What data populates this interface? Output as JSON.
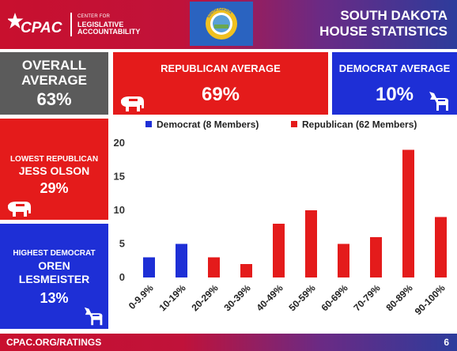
{
  "header": {
    "logo_text": "CPAC",
    "org_line1": "CENTER FOR",
    "org_line2": "LEGISLATIVE",
    "org_line3": "ACCOUNTABILITY",
    "title_line1": "SOUTH DAKOTA",
    "title_line2": "HOUSE STATISTICS",
    "flag_text": "SOUTH DAKOTA"
  },
  "stats": {
    "overall_label_line1": "OVERALL",
    "overall_label_line2": "AVERAGE",
    "overall_value": "63%",
    "republican_label": "REPUBLICAN AVERAGE",
    "republican_value": "69%",
    "democrat_label": "DEMOCRAT AVERAGE",
    "democrat_value": "10%",
    "lowest_label": "LOWEST REPUBLICAN",
    "lowest_name": "JESS OLSON",
    "lowest_value": "29%",
    "highest_label": "HIGHEST DEMOCRAT",
    "highest_name_line1": "OREN",
    "highest_name_line2": "LESMEISTER",
    "highest_value": "13%"
  },
  "colors": {
    "democrat": "#1e2fd6",
    "republican": "#e41b1b",
    "gray": "#5b5b5b"
  },
  "footer": {
    "link": "CPAC.ORG/RATINGS",
    "page": "6"
  },
  "chart_data": {
    "type": "bar",
    "categories": [
      "0-9.9%",
      "10-19%",
      "20-29%",
      "30-39%",
      "40-49%",
      "50-59%",
      "60-69%",
      "70-79%",
      "80-89%",
      "90-100%"
    ],
    "series": [
      {
        "name": "Democrat (8 Members)",
        "color": "#1e2fd6",
        "values": [
          3,
          5,
          0,
          0,
          0,
          0,
          0,
          0,
          0,
          0
        ]
      },
      {
        "name": "Republican (62 Members)",
        "color": "#e41b1b",
        "values": [
          0,
          0,
          3,
          2,
          8,
          10,
          5,
          6,
          19,
          9
        ]
      }
    ],
    "ylim": [
      0,
      20
    ],
    "yticks": [
      0,
      5,
      10,
      15,
      20
    ],
    "grid": false,
    "legend": "top"
  }
}
